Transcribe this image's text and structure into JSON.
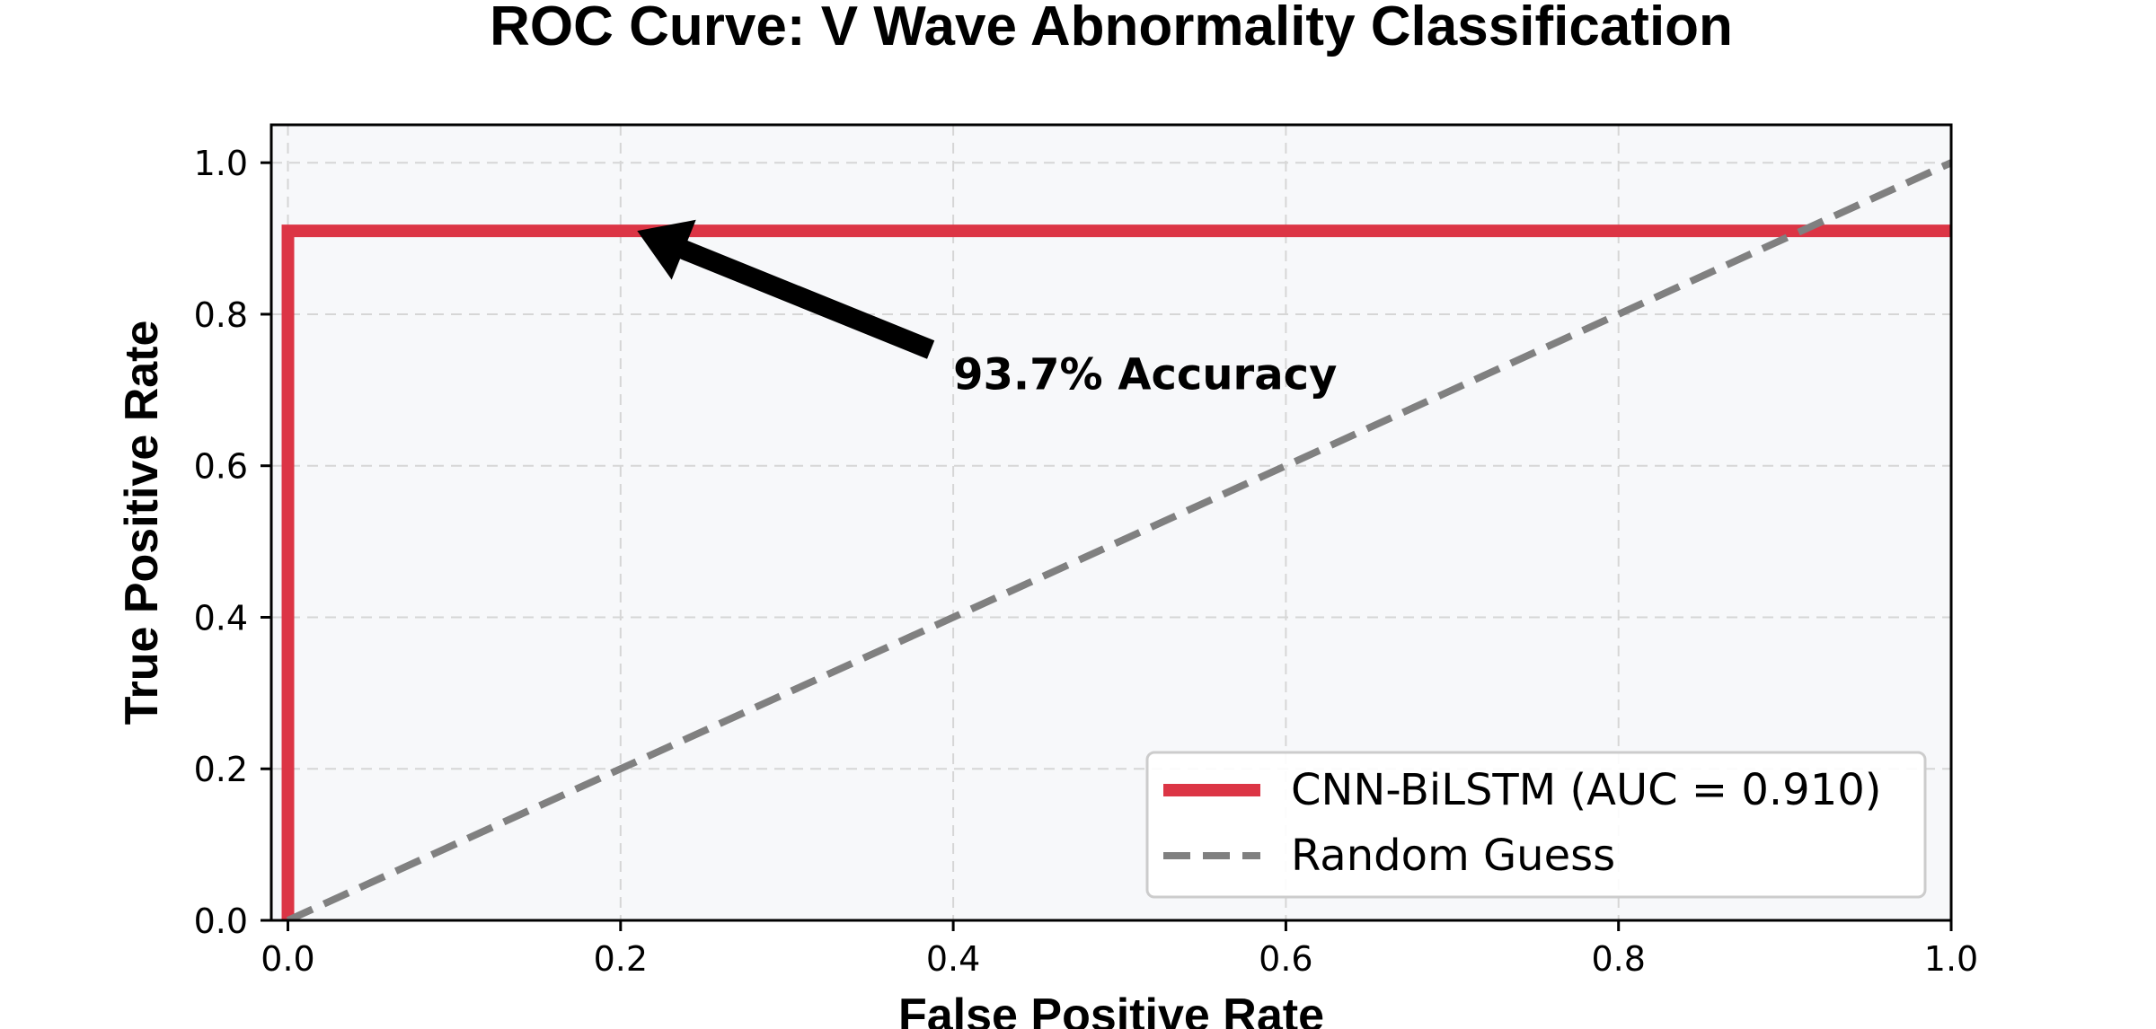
{
  "chart_data": {
    "type": "line",
    "title": "ROC Curve: V Wave Abnormality Classification",
    "xlabel": "False Positive Rate",
    "ylabel": "True Positive Rate",
    "xlim": [
      -0.01,
      1.0
    ],
    "ylim": [
      0.0,
      1.05
    ],
    "xticks": [
      0.0,
      0.2,
      0.4,
      0.6,
      0.8,
      1.0
    ],
    "yticks": [
      0.0,
      0.2,
      0.4,
      0.6,
      0.8,
      1.0
    ],
    "xtick_labels": [
      "0.0",
      "0.2",
      "0.4",
      "0.6",
      "0.8",
      "1.0"
    ],
    "ytick_labels": [
      "0.0",
      "0.2",
      "0.4",
      "0.6",
      "0.8",
      "1.0"
    ],
    "grid": true,
    "legend_position": "lower-right",
    "series": [
      {
        "name": "CNN-BiLSTM (AUC = 0.910)",
        "color": "#dc3545",
        "style": "solid",
        "x": [
          0.0,
          0.0,
          1.0
        ],
        "y": [
          0.0,
          0.91,
          0.91
        ]
      },
      {
        "name": "Random Guess",
        "color": "#808080",
        "style": "dashed",
        "x": [
          0.0,
          1.0
        ],
        "y": [
          0.0,
          1.0
        ]
      }
    ],
    "annotations": [
      {
        "text": "93.7% Accuracy",
        "point": [
          0.21,
          0.91
        ],
        "text_at": [
          0.4,
          0.72
        ]
      }
    ]
  }
}
